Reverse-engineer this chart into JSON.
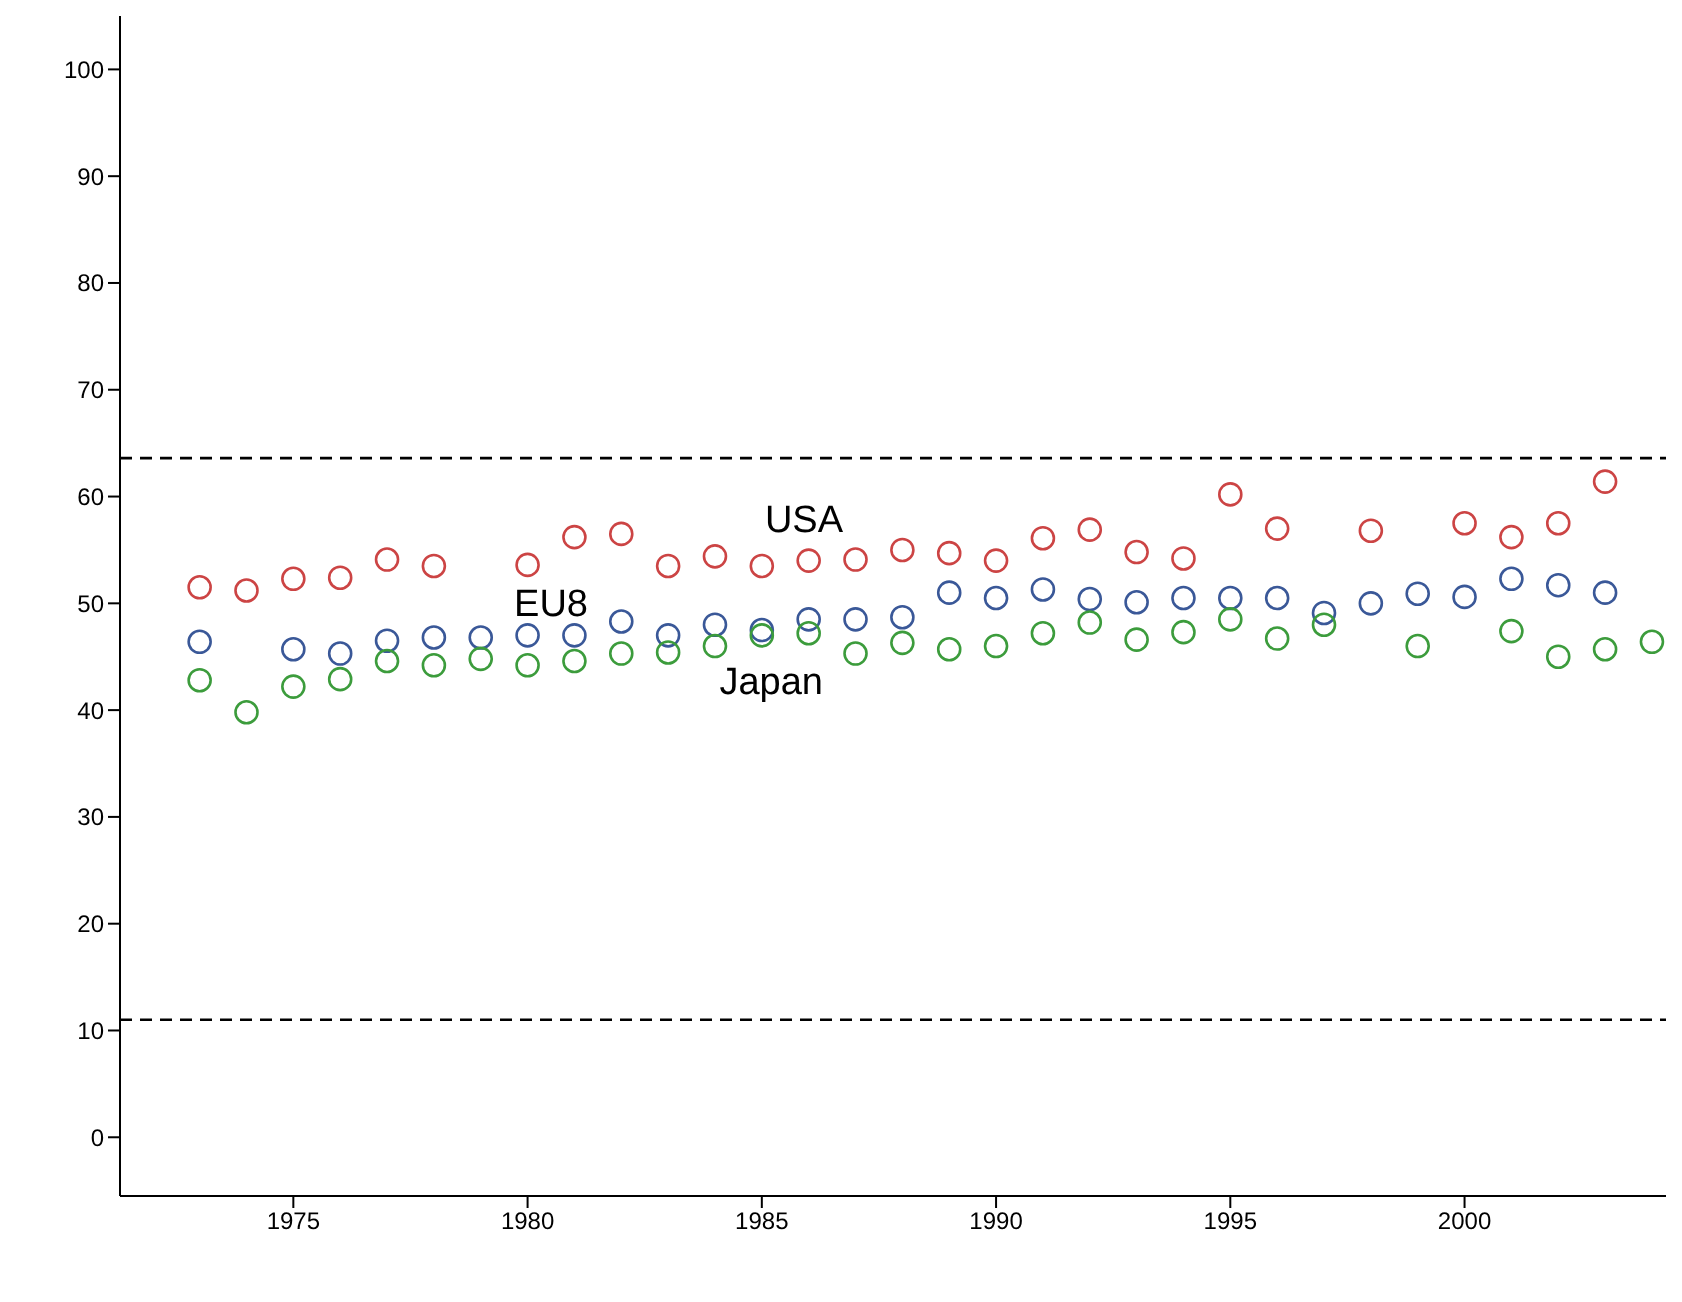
{
  "chart_data": {
    "type": "scatter",
    "marker": "circle",
    "grid": false,
    "legend": false,
    "xlim": [
      1971.3,
      2004.3
    ],
    "xticks": [
      1975,
      1980,
      1985,
      1990,
      1995,
      2000
    ],
    "ylim": [
      -5.5,
      105
    ],
    "yticks": [
      0,
      10,
      20,
      30,
      40,
      50,
      60,
      70,
      80,
      90,
      100
    ],
    "series": [
      {
        "name": "USA",
        "color": "#cc4444",
        "x": [
          1973,
          1974,
          1975,
          1976,
          1977,
          1978,
          1980,
          1981,
          1982,
          1983,
          1984,
          1985,
          1986,
          1987,
          1988,
          1989,
          1990,
          1991,
          1992,
          1993,
          1994,
          1995,
          1996,
          1998,
          2000,
          2001,
          2002,
          2003
        ],
        "values": [
          51.5,
          51.2,
          52.3,
          52.4,
          54.1,
          53.5,
          53.6,
          56.2,
          56.5,
          53.5,
          54.4,
          53.5,
          54.0,
          54.1,
          55.0,
          54.7,
          54.0,
          56.1,
          56.9,
          54.8,
          54.2,
          60.2,
          57.0,
          56.8,
          57.5,
          56.2,
          57.5,
          61.4
        ]
      },
      {
        "name": "EU8",
        "color": "#3a5898",
        "x": [
          1973,
          1975,
          1976,
          1977,
          1978,
          1979,
          1980,
          1981,
          1982,
          1983,
          1984,
          1985,
          1986,
          1987,
          1988,
          1989,
          1990,
          1991,
          1992,
          1993,
          1994,
          1995,
          1996,
          1997,
          1998,
          1999,
          2000,
          2001,
          2002,
          2003
        ],
        "values": [
          46.4,
          45.7,
          45.3,
          46.5,
          46.8,
          46.8,
          47.0,
          47.0,
          48.3,
          47.0,
          48.0,
          47.5,
          48.5,
          48.5,
          48.7,
          51.0,
          50.5,
          51.3,
          50.4,
          50.1,
          50.5,
          50.5,
          50.5,
          49.1,
          50.0,
          50.9,
          50.6,
          52.3,
          51.7,
          51.0
        ]
      },
      {
        "name": "Japan",
        "color": "#3c9c3c",
        "x": [
          1973,
          1974,
          1975,
          1976,
          1977,
          1978,
          1979,
          1980,
          1981,
          1982,
          1983,
          1984,
          1985,
          1986,
          1987,
          1988,
          1989,
          1990,
          1991,
          1992,
          1993,
          1994,
          1995,
          1996,
          1997,
          1999,
          2001,
          2002,
          2003,
          2004
        ],
        "values": [
          42.8,
          39.8,
          42.2,
          42.9,
          44.6,
          44.2,
          44.8,
          44.2,
          44.6,
          45.3,
          45.4,
          46.0,
          47.0,
          47.2,
          45.3,
          46.3,
          45.7,
          46.0,
          47.2,
          48.2,
          46.6,
          47.3,
          48.5,
          46.7,
          48.0,
          46.0,
          47.4,
          45.0,
          45.7,
          46.4
        ]
      }
    ],
    "ref_lines": [
      {
        "axis": "y",
        "value": 63.6,
        "color": "#000000",
        "line_style": "dashed"
      },
      {
        "axis": "y",
        "value": 11.0,
        "color": "#000000",
        "line_style": "dashed"
      }
    ]
  }
}
